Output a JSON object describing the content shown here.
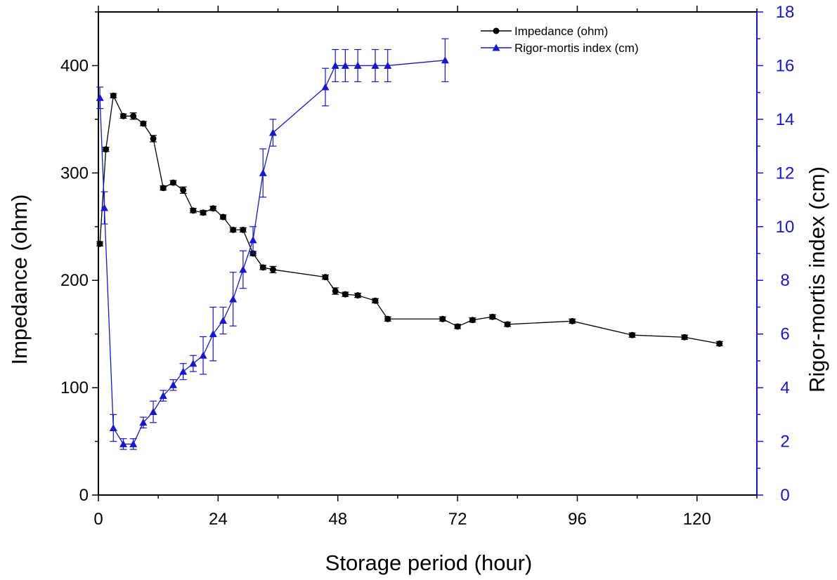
{
  "colors": {
    "impedance": "#000000",
    "rigor": "#1515d4",
    "axis": "#000000"
  },
  "chart_data": {
    "type": "line",
    "xlabel": "Storage period (hour)",
    "ylabel_left": "Impedance (ohm)",
    "ylabel_right": "Rigor-mortis index (cm)",
    "xlim": [
      0,
      132
    ],
    "ylim_left": [
      0,
      450
    ],
    "ylim_right": [
      0,
      18
    ],
    "x_ticks": [
      "0",
      "24",
      "48",
      "72",
      "96",
      "120"
    ],
    "y_left_ticks": [
      "0",
      "100",
      "200",
      "300",
      "400"
    ],
    "y_right_ticks": [
      "0",
      "2",
      "4",
      "6",
      "8",
      "10",
      "12",
      "14",
      "16",
      "18"
    ],
    "legend_position": "top-right",
    "series": [
      {
        "name": "Impedance (ohm)",
        "axis": "left",
        "marker": "circle",
        "x": [
          0.3,
          1.5,
          3,
          5,
          7,
          9,
          11,
          13,
          15,
          17,
          19,
          21,
          23,
          25,
          27,
          29,
          31,
          33,
          35,
          45.5,
          47.5,
          49.5,
          52,
          55.5,
          58,
          69,
          72,
          75,
          79,
          82,
          95,
          107,
          117.5,
          124.5
        ],
        "y": [
          234,
          322,
          372,
          353,
          353,
          346,
          332,
          286,
          291,
          284,
          265,
          263,
          267,
          259,
          247,
          247,
          225,
          212,
          210,
          203,
          190,
          187,
          186,
          181,
          164,
          164,
          157,
          163,
          166,
          159,
          162,
          149,
          147,
          141
        ],
        "err": [
          2,
          2,
          2,
          2,
          3,
          2,
          3,
          2,
          2,
          3,
          2,
          2,
          2,
          2,
          2,
          2,
          2,
          2,
          3,
          2,
          3,
          2,
          2,
          2,
          2,
          2,
          2,
          2,
          2,
          2,
          2,
          2,
          2,
          2
        ]
      },
      {
        "name": "Rigor-mortis index (cm)",
        "axis": "right",
        "marker": "triangle",
        "x": [
          0.3,
          1.2,
          3,
          5,
          7,
          9,
          11,
          13,
          15,
          17,
          19,
          21,
          23,
          25,
          27,
          29,
          31,
          33,
          35,
          45.5,
          47.5,
          49.5,
          52,
          55.5,
          58,
          69.5
        ],
        "y": [
          14.8,
          10.7,
          2.5,
          1.9,
          1.9,
          2.7,
          3.1,
          3.7,
          4.1,
          4.6,
          4.9,
          5.2,
          6.0,
          6.5,
          7.3,
          8.4,
          9.5,
          12.0,
          13.5,
          15.2,
          16.0,
          16.0,
          16.0,
          16.0,
          16.0,
          16.2
        ],
        "err": [
          0.4,
          0.6,
          0.5,
          0.2,
          0.2,
          0.2,
          0.4,
          0.2,
          0.2,
          0.3,
          0.3,
          0.7,
          1.0,
          0.5,
          1.0,
          0.7,
          0.5,
          0.9,
          0.5,
          0.7,
          0.6,
          0.6,
          0.6,
          0.6,
          0.6,
          0.8
        ]
      }
    ]
  }
}
